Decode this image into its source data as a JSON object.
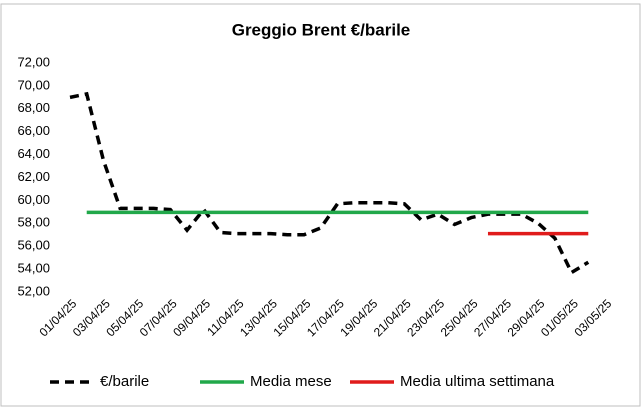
{
  "chart_data": {
    "type": "line",
    "title": "Greggio Brent €/barile",
    "xlim": [
      "01/04/25",
      "03/05/25"
    ],
    "xticks": [
      "01/04/25",
      "03/04/25",
      "05/04/25",
      "07/04/25",
      "09/04/25",
      "11/04/25",
      "13/04/25",
      "15/04/25",
      "17/04/25",
      "19/04/25",
      "21/04/25",
      "23/04/25",
      "25/04/25",
      "27/04/25",
      "29/04/25",
      "01/05/25",
      "03/05/25"
    ],
    "ylim": [
      52,
      72
    ],
    "yticks": [
      {
        "value": 52,
        "label": "52,00"
      },
      {
        "value": 54,
        "label": "54,00"
      },
      {
        "value": 56,
        "label": "56,00"
      },
      {
        "value": 58,
        "label": "58,00"
      },
      {
        "value": 60,
        "label": "60,00"
      },
      {
        "value": 62,
        "label": "62,00"
      },
      {
        "value": 64,
        "label": "64,00"
      },
      {
        "value": 66,
        "label": "66,00"
      },
      {
        "value": 68,
        "label": "68,00"
      },
      {
        "value": 70,
        "label": "70,00"
      },
      {
        "value": 72,
        "label": "72,00"
      }
    ],
    "grid": false,
    "series": [
      {
        "name": "€/barile",
        "color": "#000000",
        "dashed": true,
        "x": [
          "01/04/25",
          "02/04/25",
          "03/04/25",
          "04/04/25",
          "05/04/25",
          "06/04/25",
          "07/04/25",
          "08/04/25",
          "09/04/25",
          "10/04/25",
          "11/04/25",
          "12/04/25",
          "13/04/25",
          "14/04/25",
          "15/04/25",
          "16/04/25",
          "17/04/25",
          "18/04/25",
          "19/04/25",
          "20/04/25",
          "21/04/25",
          "22/04/25",
          "23/04/25",
          "24/04/25",
          "25/04/25",
          "26/04/25",
          "27/04/25",
          "28/04/25",
          "29/04/25",
          "30/04/25",
          "01/05/25",
          "02/05/25"
        ],
        "values": [
          69.0,
          69.3,
          63.5,
          59.3,
          59.3,
          59.3,
          59.2,
          57.4,
          59.2,
          57.2,
          57.1,
          57.1,
          57.1,
          57.0,
          57.0,
          57.6,
          59.7,
          59.8,
          59.8,
          59.8,
          59.7,
          58.3,
          58.8,
          57.9,
          58.5,
          58.8,
          58.8,
          58.8,
          58.0,
          56.7,
          53.7,
          54.6
        ]
      },
      {
        "name": "Media mese",
        "color": "#21a84a",
        "dashed": false,
        "x": [
          "02/04/25",
          "02/05/25"
        ],
        "values": [
          58.95,
          58.95
        ]
      },
      {
        "name": "Media ultima settimana",
        "color": "#e01b1b",
        "dashed": false,
        "x": [
          "26/04/25",
          "02/05/25"
        ],
        "values": [
          57.1,
          57.1
        ]
      }
    ]
  }
}
